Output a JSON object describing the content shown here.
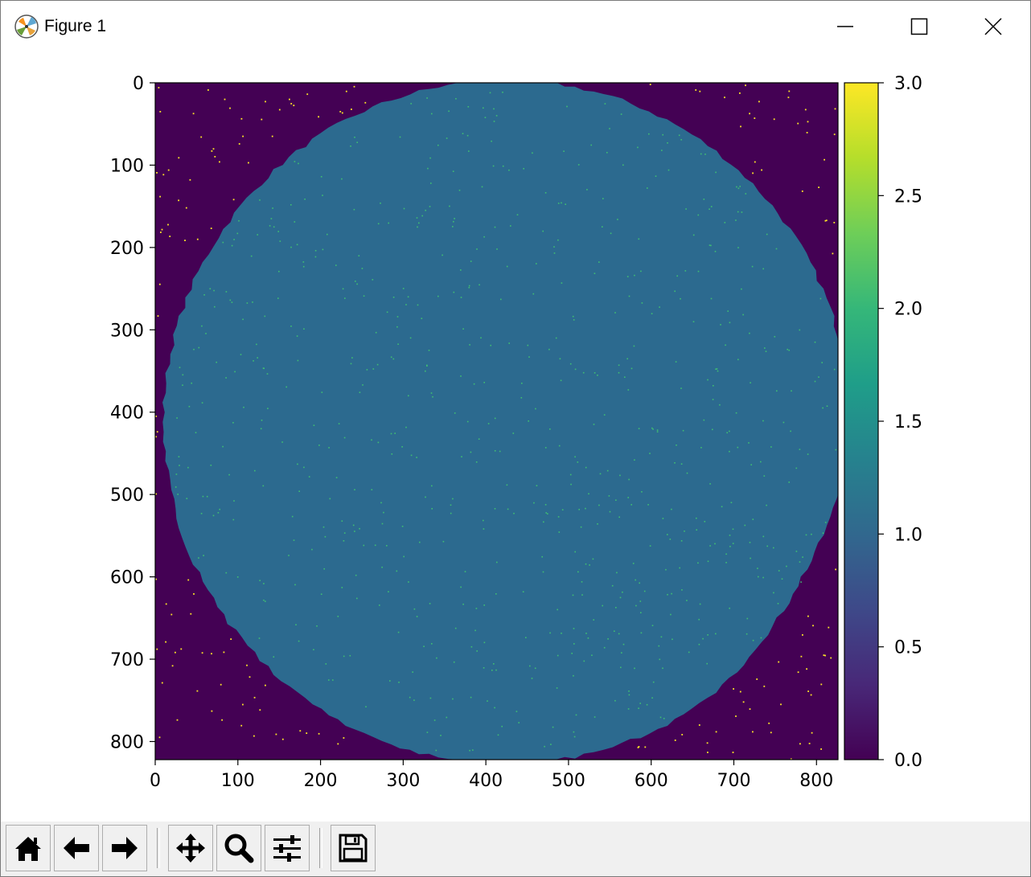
{
  "window": {
    "title": "Figure 1",
    "controls": [
      "minimize",
      "maximize",
      "close"
    ]
  },
  "colors": {
    "background_zero": "#440154",
    "disc_one": "#2c6a8f",
    "speck_two": "#3fbc73",
    "speck_three": "#fde725"
  },
  "chart_data": {
    "type": "heatmap",
    "colormap": "viridis",
    "image_extent": {
      "x": [
        0,
        826
      ],
      "y": [
        822,
        0
      ]
    },
    "y_axis_inverted": true,
    "xticks": [
      "0",
      "100",
      "200",
      "300",
      "400",
      "500",
      "600",
      "700",
      "800"
    ],
    "yticks": [
      "0",
      "100",
      "200",
      "300",
      "400",
      "500",
      "600",
      "700",
      "800"
    ],
    "xtick_values": [
      0,
      100,
      200,
      300,
      400,
      500,
      600,
      700,
      800
    ],
    "ytick_values": [
      0,
      100,
      200,
      300,
      400,
      500,
      600,
      700,
      800
    ],
    "content": {
      "background_value": 0,
      "disc_value": 1,
      "speck_inside_disc_value": 2,
      "speck_outside_disc_value": 3,
      "disc_center": [
        425,
        412
      ],
      "disc_radius": 415
    },
    "colorbar": {
      "range": [
        0.0,
        3.0
      ],
      "ticks": [
        "0.0",
        "0.5",
        "1.0",
        "1.5",
        "2.0",
        "2.5",
        "3.0"
      ],
      "tick_values": [
        0.0,
        0.5,
        1.0,
        1.5,
        2.0,
        2.5,
        3.0
      ],
      "stops": [
        "#440154",
        "#482878",
        "#3e4989",
        "#31688e",
        "#26828e",
        "#1f9e89",
        "#35b779",
        "#6ece58",
        "#b5de2b",
        "#fde725"
      ]
    }
  },
  "toolbar": {
    "buttons": [
      {
        "name": "home",
        "icon": "home-icon"
      },
      {
        "name": "back",
        "icon": "arrow-left-icon"
      },
      {
        "name": "forward",
        "icon": "arrow-right-icon"
      },
      {
        "name": "pan",
        "icon": "move-icon"
      },
      {
        "name": "zoom",
        "icon": "magnifier-icon"
      },
      {
        "name": "configure-subplots",
        "icon": "sliders-icon"
      },
      {
        "name": "save",
        "icon": "floppy-disk-icon"
      }
    ]
  }
}
